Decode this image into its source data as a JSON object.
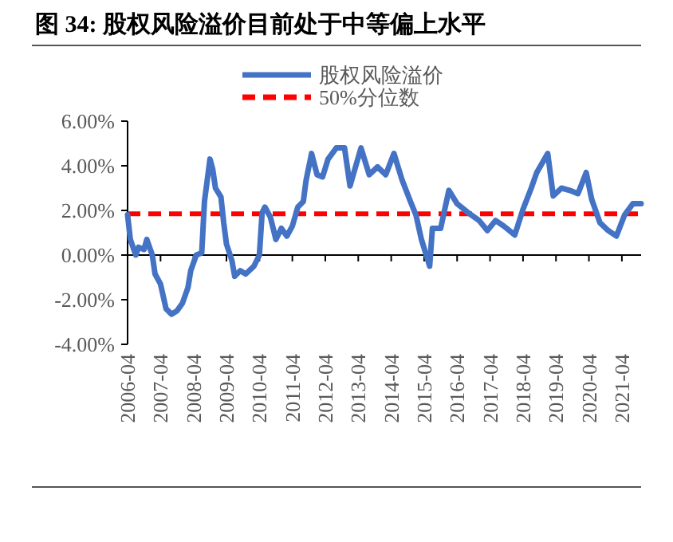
{
  "chart_data": {
    "type": "line",
    "title": "图 34: 股权风险溢价目前处于中等偏上水平",
    "x": [
      "2006-04",
      "2006-05",
      "2006-07",
      "2006-08",
      "2006-10",
      "2006-11",
      "2007-01",
      "2007-02",
      "2007-04",
      "2007-06",
      "2007-08",
      "2007-10",
      "2007-12",
      "2008-02",
      "2008-03",
      "2008-05",
      "2008-07",
      "2008-08",
      "2008-10",
      "2008-11",
      "2008-12",
      "2009-02",
      "2009-03",
      "2009-04",
      "2009-06",
      "2009-07",
      "2009-09",
      "2009-11",
      "2010-02",
      "2010-04",
      "2010-05",
      "2010-06",
      "2010-08",
      "2010-10",
      "2010-12",
      "2011-02",
      "2011-04",
      "2011-06",
      "2011-08",
      "2011-09",
      "2011-11",
      "2012-01",
      "2012-03",
      "2012-05",
      "2012-08",
      "2012-11",
      "2013-01",
      "2013-05",
      "2013-08",
      "2013-11",
      "2014-02",
      "2014-05",
      "2014-08",
      "2014-11",
      "2015-01",
      "2015-03",
      "2015-06",
      "2015-07",
      "2015-10",
      "2016-01",
      "2016-04",
      "2016-08",
      "2016-12",
      "2017-03",
      "2017-06",
      "2017-09",
      "2018-01",
      "2018-04",
      "2018-07",
      "2018-09",
      "2019-01",
      "2019-03",
      "2019-06",
      "2019-09",
      "2019-12",
      "2020-03",
      "2020-05",
      "2020-08",
      "2020-11",
      "2021-02",
      "2021-05",
      "2021-08",
      "2021-11"
    ],
    "series": [
      {
        "name": "股权风险溢价",
        "color": "#4472c4",
        "values": [
          1.8,
          0.7,
          0,
          0.35,
          0.25,
          0.7,
          0,
          -0.85,
          -1.3,
          -2.4,
          -2.65,
          -2.5,
          -2.15,
          -1.45,
          -0.7,
          0,
          0.1,
          2.4,
          4.3,
          3.85,
          3.0,
          2.6,
          1.45,
          0.5,
          -0.25,
          -0.95,
          -0.7,
          -0.85,
          -0.5,
          0,
          1.9,
          2.15,
          1.7,
          0.7,
          1.2,
          0.85,
          1.3,
          2.15,
          2.4,
          3.35,
          4.55,
          3.6,
          3.5,
          4.3,
          4.8,
          4.8,
          3.1,
          4.8,
          3.6,
          3.95,
          3.6,
          4.55,
          3.35,
          2.4,
          1.8,
          0.7,
          -0.5,
          1.2,
          1.2,
          2.9,
          2.3,
          1.9,
          1.55,
          1.1,
          1.55,
          1.3,
          0.9,
          2.05,
          3.0,
          3.7,
          4.55,
          2.65,
          3.0,
          2.9,
          2.75,
          3.7,
          2.5,
          1.45,
          1.1,
          0.85,
          1.8,
          2.3,
          2.3
        ]
      }
    ],
    "ref_lines": [
      {
        "axis": "y",
        "value": 1.85,
        "label": "50%分位数",
        "color": "#ff0000",
        "line_style": "dashed"
      }
    ],
    "xlim": [
      "2006-04",
      "2021-11"
    ],
    "xticks": [
      "2006-04",
      "2007-04",
      "2008-04",
      "2009-04",
      "2010-04",
      "2011-04",
      "2012-04",
      "2013-04",
      "2014-04",
      "2015-04",
      "2016-04",
      "2017-04",
      "2018-04",
      "2019-04",
      "2020-04",
      "2021-04"
    ],
    "ylim": [
      -4,
      6
    ],
    "yticks": [
      {
        "value": -4,
        "label": "-4.00%"
      },
      {
        "value": -2,
        "label": "-2.00%"
      },
      {
        "value": 0,
        "label": "0.00%"
      },
      {
        "value": 2,
        "label": "2.00%"
      },
      {
        "value": 4,
        "label": "4.00%"
      },
      {
        "value": 6,
        "label": "6.00%"
      }
    ],
    "legend": "top"
  }
}
